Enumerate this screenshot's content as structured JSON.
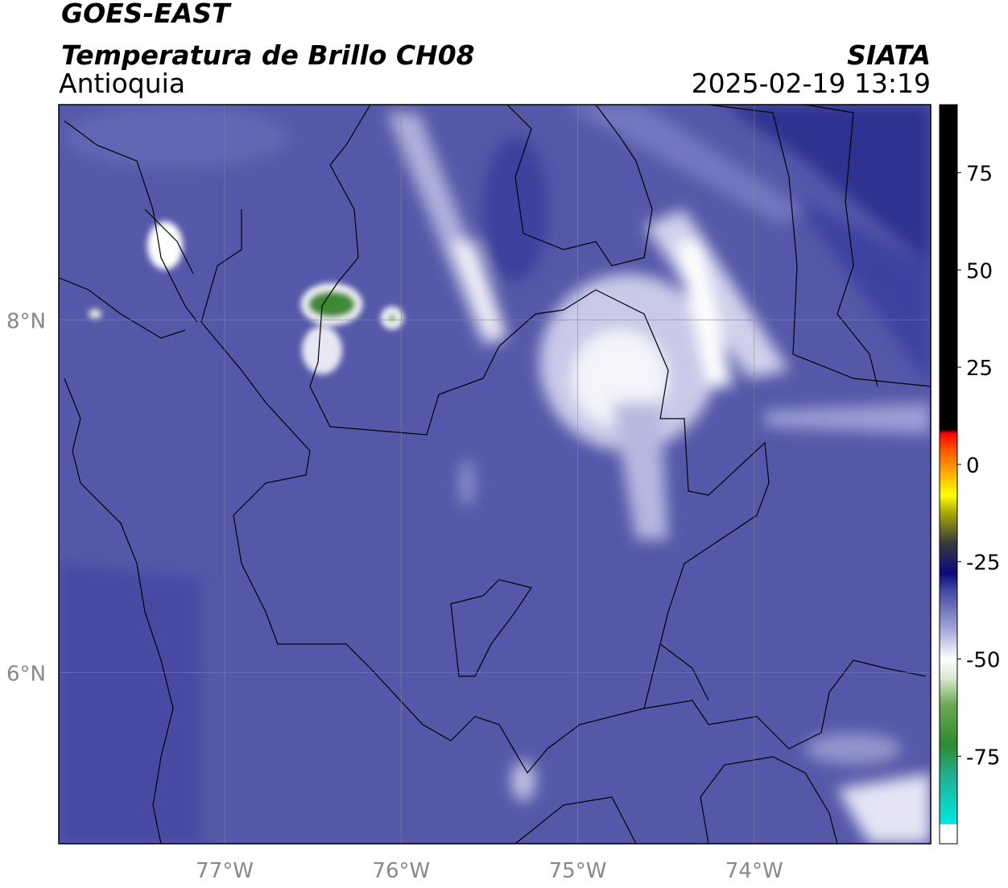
{
  "header": {
    "title": "GOES-EAST",
    "subtitle": "Temperatura de Brillo CH08",
    "region": "Antioquia",
    "source": "SIATA",
    "datetime": "2025-02-19 13:19"
  },
  "map": {
    "xlim": [
      -77.94,
      -73.0
    ],
    "ylim": [
      5.03,
      9.22
    ],
    "xticks": [
      {
        "value": -77,
        "label": "77°W"
      },
      {
        "value": -76,
        "label": "76°W"
      },
      {
        "value": -75,
        "label": "75°W"
      },
      {
        "value": -74,
        "label": "74°W"
      }
    ],
    "yticks": [
      {
        "value": 8,
        "label": "8°N"
      },
      {
        "value": 6,
        "label": "6°N"
      }
    ],
    "grid": true
  },
  "colorbar": {
    "lim": [
      -97.5,
      92.5
    ],
    "ticks": [
      75,
      50,
      25,
      0,
      -25,
      -50,
      -75
    ],
    "stops": [
      {
        "value": -97.5,
        "color": "#ffffff"
      },
      {
        "value": -92.6,
        "color": "#ffffff"
      },
      {
        "value": -92.4,
        "color": "#00e8e0"
      },
      {
        "value": -80,
        "color": "#20b090"
      },
      {
        "value": -72,
        "color": "#2e8b2e"
      },
      {
        "value": -62,
        "color": "#6aa84f"
      },
      {
        "value": -55,
        "color": "#d8e8d0"
      },
      {
        "value": -50,
        "color": "#ffffff"
      },
      {
        "value": -42,
        "color": "#9fa3d6"
      },
      {
        "value": -33,
        "color": "#4a4fa8"
      },
      {
        "value": -28,
        "color": "#0a0a80"
      },
      {
        "value": -20,
        "color": "#3a3a3a"
      },
      {
        "value": -12,
        "color": "#b0b000"
      },
      {
        "value": -8,
        "color": "#ffff00"
      },
      {
        "value": -2,
        "color": "#ffaa00"
      },
      {
        "value": 4,
        "color": "#ff5000"
      },
      {
        "value": 8,
        "color": "#ff0000"
      },
      {
        "value": 9,
        "color": "#000000"
      },
      {
        "value": 92.5,
        "color": "#000000"
      }
    ]
  }
}
